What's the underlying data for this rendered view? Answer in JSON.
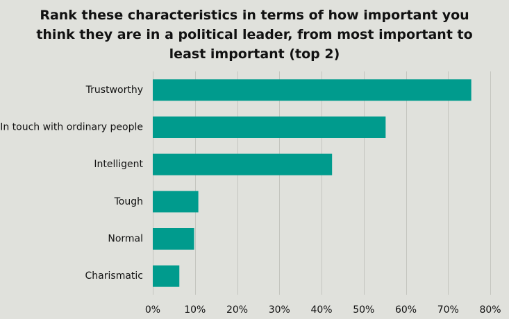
{
  "chart_data": {
    "type": "bar",
    "orientation": "horizontal",
    "title_lines": [
      "Rank these characteristics  in terms of how important  you",
      "think they are in a political  leader, from most important  to",
      "least important  (top 2)"
    ],
    "categories": [
      "Trustworthy",
      "In touch with ordinary people",
      "Intelligent",
      "Tough",
      "Normal",
      "Charismatic"
    ],
    "values": [
      0.755,
      0.552,
      0.425,
      0.108,
      0.098,
      0.063
    ],
    "xlim": [
      0,
      0.8
    ],
    "x_ticks": [
      0,
      0.1,
      0.2,
      0.3,
      0.4,
      0.5,
      0.6,
      0.7,
      0.8
    ],
    "x_tick_labels": [
      "0%",
      "10%",
      "20%",
      "30%",
      "40%",
      "50%",
      "60%",
      "70%",
      "80%"
    ],
    "grid": true,
    "legend": "none",
    "bar_color": "#009b8d",
    "background_color": "#e0e1dc"
  }
}
